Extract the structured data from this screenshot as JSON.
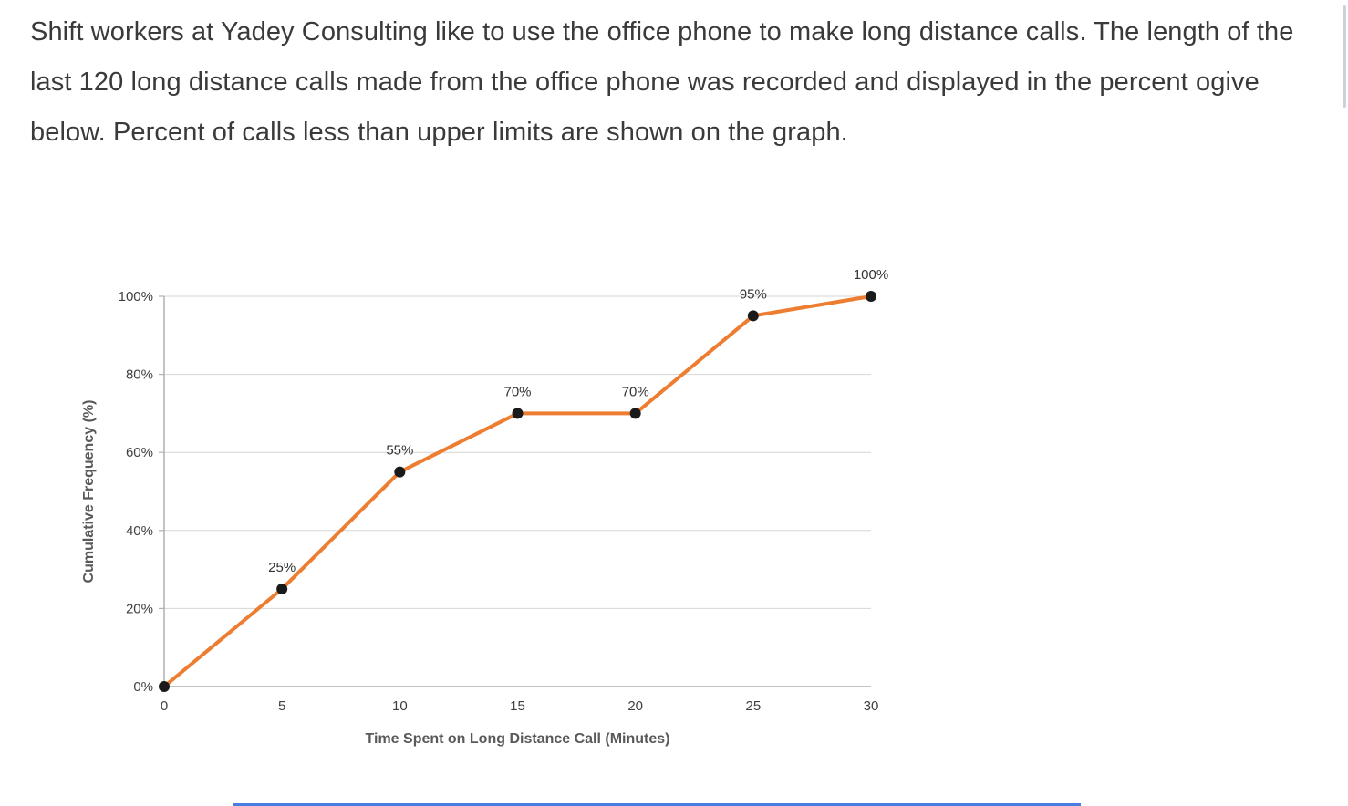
{
  "page": {
    "background": "#ffffff",
    "paragraph": "Shift workers at Yadey Consulting like to use the office phone to make long distance calls. The length of the last 120 long distance calls made from the office phone was recorded and displayed in the percent ogive below. Percent of calls less than upper limits are shown on the graph."
  },
  "chart_data": {
    "type": "line",
    "title": "",
    "x": [
      0,
      5,
      10,
      15,
      20,
      25,
      30
    ],
    "values": [
      0,
      25,
      55,
      70,
      70,
      95,
      100
    ],
    "point_labels": [
      "",
      "25%",
      "55%",
      "70%",
      "70%",
      "95%",
      "100%"
    ],
    "xlabel": "Time Spent on Long Distance Call (Minutes)",
    "ylabel": "Cumulative Frequency (%)",
    "x_ticks": [
      0,
      5,
      10,
      15,
      20,
      25,
      30
    ],
    "y_ticks": [
      "0%",
      "20%",
      "40%",
      "60%",
      "80%",
      "100%"
    ],
    "xlim": [
      0,
      30
    ],
    "ylim": [
      0,
      100
    ],
    "grid": "horizontal",
    "legend": "none",
    "line_color": "#ED7D31",
    "marker_color": "#1a1a1a",
    "gridline_color": "#d6d6d6",
    "axis_color": "#b0b0b0",
    "tick_label_color": "#404040",
    "axis_title_color": "#595959",
    "point_label_color": "#333333"
  }
}
